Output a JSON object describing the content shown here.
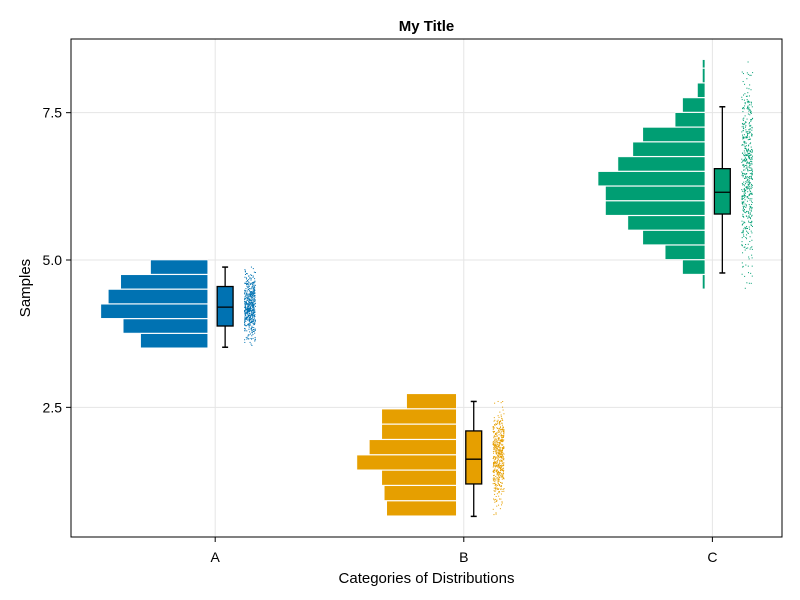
{
  "chart_data": {
    "type": "raincloud",
    "title": "My Title",
    "xlabel": "Categories of Distributions",
    "ylabel": "Samples",
    "categories": [
      "A",
      "B",
      "C"
    ],
    "xlim": [
      -0.58,
      2.28
    ],
    "ylim": [
      0.3,
      8.75
    ],
    "y_ticks": [
      2.5,
      5.0,
      7.5
    ],
    "y_tick_labels": [
      "2.5",
      "5.0",
      "7.5"
    ],
    "grid": true,
    "legend": "none",
    "colors": [
      "#0072B2",
      "#E69F00",
      "#009E73"
    ],
    "histograms": [
      {
        "category": "A",
        "bin_edges": [
          3.5,
          3.75,
          4.0,
          4.25,
          4.5,
          4.75,
          5.0
        ],
        "widths": [
          0.27,
          0.34,
          0.43,
          0.4,
          0.35,
          0.23
        ]
      },
      {
        "category": "B",
        "bin_edges": [
          0.65,
          0.91,
          1.17,
          1.43,
          1.69,
          1.95,
          2.21,
          2.47,
          2.73
        ],
        "widths": [
          0.28,
          0.29,
          0.3,
          0.4,
          0.35,
          0.3,
          0.3,
          0.2
        ]
      },
      {
        "category": "C",
        "bin_edges": [
          4.5,
          4.75,
          5.0,
          5.25,
          5.5,
          5.75,
          6.0,
          6.25,
          6.5,
          6.75,
          7.0,
          7.25,
          7.5,
          7.75,
          8.0,
          8.25,
          8.4
        ],
        "widths": [
          0.01,
          0.09,
          0.16,
          0.25,
          0.31,
          0.4,
          0.4,
          0.43,
          0.35,
          0.29,
          0.25,
          0.12,
          0.09,
          0.03,
          0.01,
          0.01
        ]
      }
    ],
    "boxplots": [
      {
        "category": "A",
        "whisker_low": 3.52,
        "q1": 3.88,
        "median": 4.2,
        "q3": 4.55,
        "whisker_high": 4.88
      },
      {
        "category": "B",
        "whisker_low": 0.65,
        "q1": 1.2,
        "median": 1.62,
        "q3": 2.1,
        "whisker_high": 2.6
      },
      {
        "category": "C",
        "whisker_low": 4.78,
        "q1": 5.78,
        "median": 6.15,
        "q3": 6.55,
        "whisker_high": 7.6
      }
    ],
    "scatter_ranges": [
      {
        "category": "A",
        "y_min": 3.55,
        "y_max": 4.88
      },
      {
        "category": "B",
        "y_min": 0.68,
        "y_max": 2.6
      },
      {
        "category": "C",
        "y_min": 4.52,
        "y_max": 8.36
      }
    ]
  }
}
